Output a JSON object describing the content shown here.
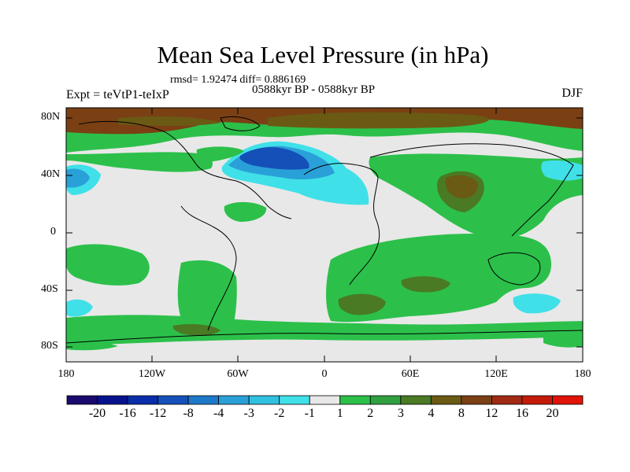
{
  "title": "Mean Sea Level Pressure (in hPa)",
  "stats": "rmsd= 1.92474 diff= 0.886169",
  "period": "0588kyr BP - 0588kyr BP",
  "experiment": "Expt = teVtP1-teIxP",
  "season": "DJF",
  "lat_labels": [
    "80N",
    "40N",
    "0",
    "40S",
    "80S"
  ],
  "lon_labels": [
    "180",
    "120W",
    "60W",
    "0",
    "60E",
    "120E",
    "180"
  ],
  "colorbar": {
    "labels": [
      "-20",
      "-16",
      "-12",
      "-8",
      "-4",
      "-3",
      "-2",
      "-1",
      "1",
      "2",
      "3",
      "4",
      "8",
      "12",
      "16",
      "20"
    ],
    "colors": [
      "#1a0a6e",
      "#06128c",
      "#0a2ea8",
      "#1450b8",
      "#1e78c8",
      "#2aa0d8",
      "#30c0e0",
      "#40e0e8",
      "#e8e8e8",
      "#2cc04a",
      "#30a040",
      "#4a7a24",
      "#6a5a14",
      "#7a4014",
      "#a02a14",
      "#c41a0a",
      "#e0140a"
    ]
  },
  "chart_data": {
    "type": "heatmap",
    "title": "Mean Sea Level Pressure (in hPa)",
    "units": "hPa",
    "x_range": [
      -180,
      180
    ],
    "y_range": [
      -90,
      90
    ],
    "levels": [
      -20,
      -16,
      -12,
      -8,
      -4,
      -3,
      -2,
      -1,
      1,
      2,
      3,
      4,
      8,
      12,
      16,
      20
    ]
  }
}
